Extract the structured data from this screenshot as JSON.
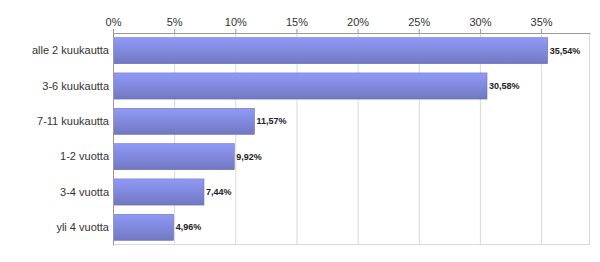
{
  "chart_data": {
    "type": "bar",
    "orientation": "horizontal",
    "categories": [
      "alle 2 kuukautta",
      "3-6 kuukautta",
      "7-11 kuukautta",
      "1-2 vuotta",
      "3-4 vuotta",
      "yli 4 vuotta"
    ],
    "values": [
      35.54,
      30.58,
      11.57,
      9.92,
      7.44,
      4.96
    ],
    "value_labels": [
      "35,54%",
      "30,58%",
      "11,57%",
      "9,92%",
      "7,44%",
      "4,96%"
    ],
    "data_labels": true,
    "color": "#7b83d3",
    "xlim": [
      0,
      39
    ],
    "xticks": [
      {
        "value": 0,
        "label": "0%"
      },
      {
        "value": 5,
        "label": "5%"
      },
      {
        "value": 10,
        "label": "10%"
      },
      {
        "value": 15,
        "label": "15%"
      },
      {
        "value": 20,
        "label": "20%"
      },
      {
        "value": 25,
        "label": "25%"
      },
      {
        "value": 30,
        "label": "30%"
      },
      {
        "value": 35,
        "label": "35%"
      }
    ],
    "grid": true
  }
}
